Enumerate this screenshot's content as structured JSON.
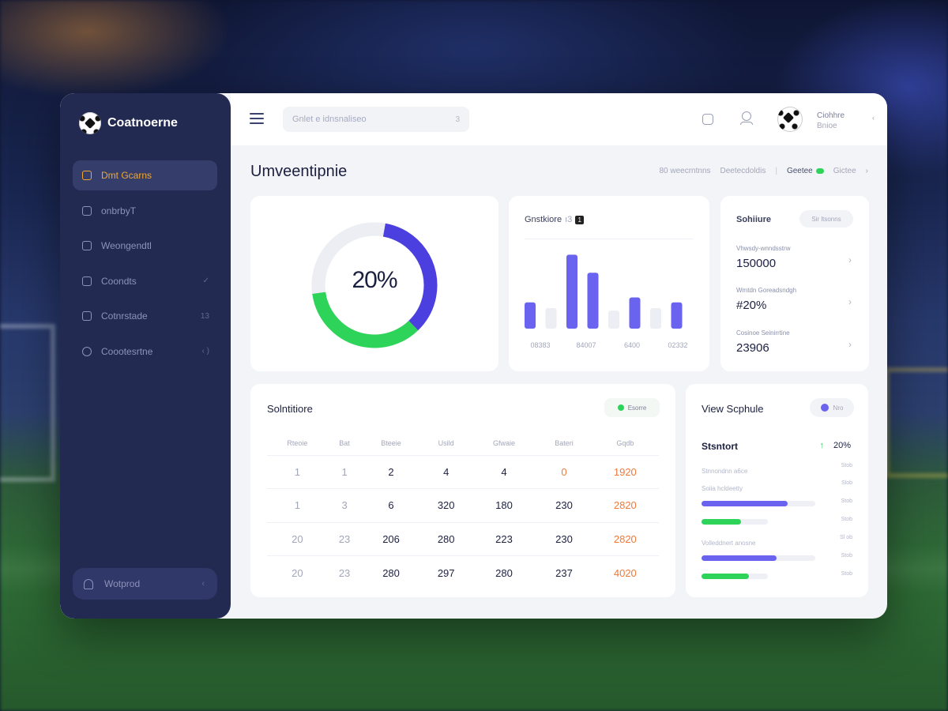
{
  "app": {
    "brand": "Coatnoerne"
  },
  "sidebar": {
    "items": [
      {
        "label": "Dmt Gcarns",
        "trail": ""
      },
      {
        "label": "onbrbyT",
        "trail": ""
      },
      {
        "label": "Weongendtl",
        "trail": ""
      },
      {
        "label": "Coondts",
        "trail": "✓"
      },
      {
        "label": "Cotnrstade",
        "trail": "13"
      },
      {
        "label": "Coootesrtne",
        "trail": "‹ )"
      }
    ],
    "footer": {
      "label": "Wotprod",
      "trail": "‹"
    }
  },
  "header": {
    "search_placeholder": "Gnlet e idnsnaliseo",
    "search_suffix": "3",
    "user_name": "Ciohhre",
    "user_role": "Bnioe",
    "user_chevron": "‹"
  },
  "page": {
    "title": "Umveentipnie",
    "crumbs": [
      "80 weecrntnns",
      "Deetecdoldis"
    ],
    "live_label": "Geetee",
    "last_crumb": "Gictee"
  },
  "donut": {
    "label": "20%",
    "segments": [
      {
        "value": 0.35,
        "color": "#4b3fe0"
      },
      {
        "value": 0.35,
        "color": "#2ed35a"
      },
      {
        "value": 0.3,
        "color": "#eceef4"
      }
    ]
  },
  "bar_chart": {
    "title": "Gnstkiore",
    "title_suffix": "ı3",
    "badge": "1",
    "ticks": [
      "08383",
      "84007",
      "6400",
      "02332"
    ],
    "chart_data": {
      "type": "bar",
      "values": [
        0.32,
        0.25,
        0.9,
        0.68,
        0.22,
        0.38,
        0.25,
        0.32
      ],
      "colors": [
        "#6a63f0",
        "#eceef4",
        "#6a63f0",
        "#6a63f0",
        "#eceef4",
        "#6a63f0",
        "#eceef4",
        "#6a63f0"
      ]
    }
  },
  "stats": {
    "title": "Sohiiure",
    "pill": "Sir ltsonns",
    "items": [
      {
        "label": "Vhwsdy-wnndsstrw",
        "value": "150000"
      },
      {
        "label": "Wmtdn Goreadsndgh",
        "value": "#20%"
      },
      {
        "label": "Cosinoe Seinirrtine",
        "value": "23906"
      }
    ]
  },
  "table": {
    "title": "Solntitiore",
    "pill": "Esorre",
    "headers": [
      "Rteoie",
      "Bat",
      "Bteeie",
      "Usild",
      "Gfwaie",
      "Bateri",
      "Gqdb"
    ],
    "rows": [
      [
        "1",
        "1",
        "2",
        "4",
        "4",
        "0",
        "1920"
      ],
      [
        "1",
        "3",
        "6",
        "320",
        "180",
        "230",
        "2820"
      ],
      [
        "20",
        "23",
        "206",
        "280",
        "223",
        "230",
        "2820"
      ],
      [
        "20",
        "23",
        "280",
        "297",
        "280",
        "237",
        "4020"
      ]
    ]
  },
  "schedule": {
    "title": "View Scphule",
    "pill": "Nro",
    "sub_title": "Stsntort",
    "sub_arrow": "↑",
    "sub_value": "20%",
    "rows": [
      {
        "label": "Stnnondnn a6ce",
        "value": "Stob"
      },
      {
        "label": "Soiia hcldeetty",
        "value": "Slob"
      },
      {
        "label": "",
        "value": "Stob",
        "progress": 0.76,
        "color": "#6a63f0"
      },
      {
        "label": "",
        "value": "Stob",
        "progress": 0.6,
        "color": "#2ed35a"
      },
      {
        "label": "Volleddnert anosne",
        "value": "Sl ob"
      },
      {
        "label": "",
        "value": "Stob",
        "progress": 0.66,
        "color": "#6a63f0"
      },
      {
        "label": "",
        "value": "Stob",
        "progress": 0.72,
        "color": "#2ed35a"
      }
    ]
  }
}
